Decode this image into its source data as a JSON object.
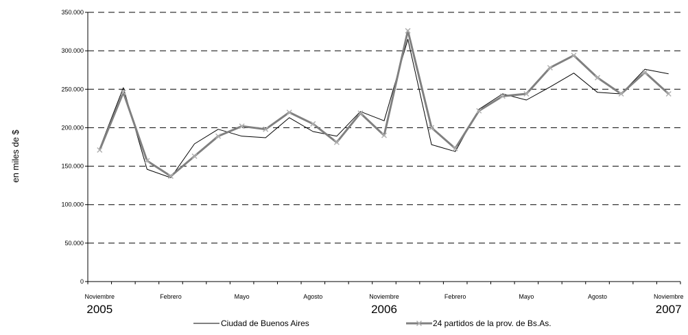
{
  "chart_data": {
    "type": "line",
    "ylabel": "en miles de $",
    "ylim": [
      0,
      350000
    ],
    "y_ticks": [
      "0",
      "50.000",
      "100.000",
      "150.000",
      "200.000",
      "250.000",
      "300.000",
      "350.000"
    ],
    "y_tick_values": [
      0,
      50000,
      100000,
      150000,
      200000,
      250000,
      300000,
      350000
    ],
    "grid": "horizontal dashed",
    "x": [
      "2005-11",
      "2005-12",
      "2006-01",
      "2006-02",
      "2006-03",
      "2006-04",
      "2006-05",
      "2006-06",
      "2006-07",
      "2006-08",
      "2006-09",
      "2006-10",
      "2006-11",
      "2006-12",
      "2007-01",
      "2007-02",
      "2007-03",
      "2007-04",
      "2007-05",
      "2007-06",
      "2007-07",
      "2007-08",
      "2007-09",
      "2007-10",
      "2007-11"
    ],
    "x_month_labels": [
      {
        "index": 0,
        "label": "Noviembre"
      },
      {
        "index": 3,
        "label": "Febrero"
      },
      {
        "index": 6,
        "label": "Mayo"
      },
      {
        "index": 9,
        "label": "Agosto"
      },
      {
        "index": 12,
        "label": "Noviembre"
      },
      {
        "index": 15,
        "label": "Febrero"
      },
      {
        "index": 18,
        "label": "Mayo"
      },
      {
        "index": 21,
        "label": "Agosto"
      },
      {
        "index": 24,
        "label": "Noviembre"
      }
    ],
    "x_year_labels": [
      {
        "index": 0,
        "label": "2005"
      },
      {
        "index": 12,
        "label": "2006"
      },
      {
        "index": 24,
        "label": "2007"
      }
    ],
    "legend_position": "bottom",
    "series": [
      {
        "name": "Ciudad de Buenos Aires",
        "color": "#000000",
        "values": [
          173000,
          252000,
          146000,
          135000,
          179000,
          198000,
          189000,
          187000,
          213000,
          195000,
          189000,
          221000,
          209000,
          315000,
          178000,
          169000,
          224000,
          244000,
          236000,
          253000,
          271000,
          246000,
          244000,
          276000,
          270000
        ]
      },
      {
        "name": "24 partidos de la prov. de Bs.As.",
        "color": "#808080",
        "marker": "x",
        "values": [
          171000,
          246000,
          157000,
          137000,
          163000,
          189000,
          202000,
          198000,
          220000,
          205000,
          181000,
          219000,
          190000,
          326000,
          200000,
          173000,
          222000,
          241000,
          244000,
          278000,
          294000,
          265000,
          244000,
          272000,
          244000
        ]
      }
    ]
  }
}
